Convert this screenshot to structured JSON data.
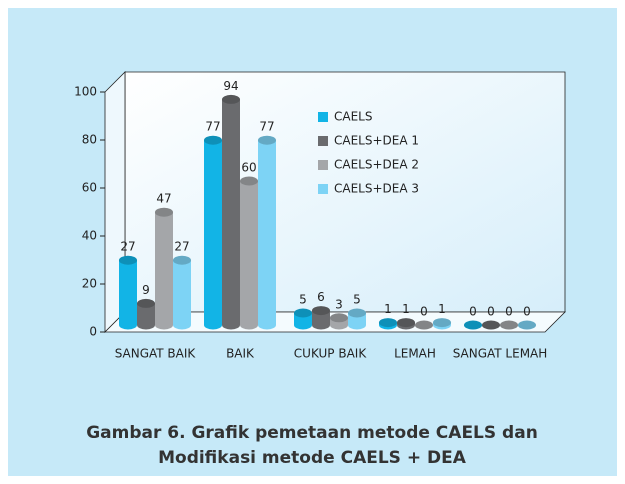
{
  "chart_data": {
    "type": "bar",
    "categories": [
      "SANGAT BAIK",
      "BAIK",
      "CUKUP BAIK",
      "LEMAH",
      "SANGAT LEMAH"
    ],
    "series": [
      {
        "name": "CAELS",
        "color": "#12b4e6",
        "values": [
          27,
          77,
          5,
          1,
          0
        ]
      },
      {
        "name": "CAELS+DEA 1",
        "color": "#6a6b6e",
        "values": [
          9,
          94,
          6,
          1,
          0
        ]
      },
      {
        "name": "CAELS+DEA 2",
        "color": "#a4a6a9",
        "values": [
          47,
          60,
          3,
          0,
          0
        ]
      },
      {
        "name": "CAELS+DEA 3",
        "color": "#7dd3f5",
        "values": [
          27,
          77,
          5,
          1,
          0
        ]
      }
    ],
    "ylim": [
      0,
      100
    ],
    "yticks": [
      0,
      20,
      40,
      60,
      80,
      100
    ],
    "legend": "right",
    "caption": [
      "Gambar 6. Grafik pemetaan metode CAELS dan",
      "Modifikasi metode CAELS + DEA"
    ]
  }
}
